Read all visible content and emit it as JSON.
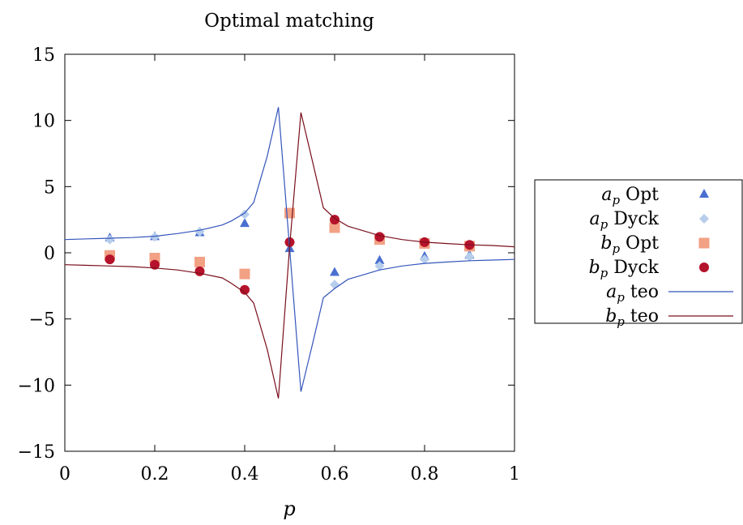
{
  "chart_data": {
    "type": "scatter",
    "title": "Optimal matching",
    "xlabel": "p",
    "ylabel": "",
    "xlim": [
      0,
      1
    ],
    "ylim": [
      -15,
      15
    ],
    "xticks": [
      0,
      0.2,
      0.4,
      0.6,
      0.8,
      1
    ],
    "xtick_labels": [
      "0",
      "0.2",
      "0.4",
      "0.6",
      "0.8",
      "1"
    ],
    "yticks": [
      -15,
      -10,
      -5,
      0,
      5,
      10,
      15
    ],
    "ytick_labels": [
      "−15",
      "−10",
      "−5",
      "0",
      "5",
      "10",
      "15"
    ],
    "grid": false,
    "legend_position": "right, outside plot",
    "series": [
      {
        "name": "a_p Opt",
        "label": "Opt",
        "sym": "a",
        "marker": "triangle",
        "color": "#4a6fd1",
        "x": [
          0.1,
          0.2,
          0.3,
          0.4,
          0.5,
          0.6,
          0.7,
          0.8,
          0.9
        ],
        "y": [
          1.1,
          1.2,
          1.5,
          2.2,
          0.3,
          -1.5,
          -0.6,
          -0.3,
          -0.2
        ]
      },
      {
        "name": "a_p Dyck",
        "label": "Dyck",
        "sym": "a",
        "marker": "diamond",
        "color": "#b7cdec",
        "x": [
          0.1,
          0.2,
          0.3,
          0.4,
          0.6,
          0.7,
          0.8,
          0.9
        ],
        "y": [
          1.0,
          1.2,
          1.6,
          2.9,
          -2.4,
          -1.0,
          -0.5,
          -0.3
        ]
      },
      {
        "name": "b_p Opt",
        "label": "Opt",
        "sym": "b",
        "marker": "square",
        "color": "#f2a184",
        "x": [
          0.1,
          0.2,
          0.3,
          0.4,
          0.5,
          0.6,
          0.7,
          0.8,
          0.9
        ],
        "y": [
          -0.2,
          -0.4,
          -0.7,
          -1.6,
          3.0,
          1.9,
          1.0,
          0.7,
          0.5
        ]
      },
      {
        "name": "b_p Dyck",
        "label": "Dyck",
        "sym": "b",
        "marker": "circle",
        "color": "#b5122b",
        "x": [
          0.1,
          0.2,
          0.3,
          0.4,
          0.5,
          0.6,
          0.7,
          0.8,
          0.9
        ],
        "y": [
          -0.5,
          -0.9,
          -1.4,
          -2.8,
          0.8,
          2.5,
          1.2,
          0.8,
          0.6
        ]
      },
      {
        "name": "a_p teo",
        "label": "teo",
        "sym": "a",
        "marker": "line",
        "color": "#3355bb",
        "x": [
          0.0,
          0.05,
          0.1,
          0.15,
          0.2,
          0.25,
          0.3,
          0.35,
          0.37,
          0.4,
          0.42,
          0.45,
          0.475,
          0.5,
          0.525,
          0.55,
          0.575,
          0.6,
          0.63,
          0.65,
          0.7,
          0.75,
          0.8,
          0.85,
          0.9,
          0.95,
          1.0
        ],
        "y": [
          1.0,
          1.05,
          1.1,
          1.15,
          1.25,
          1.45,
          1.7,
          2.1,
          2.4,
          3.0,
          3.8,
          7.3,
          11.0,
          0.3,
          -10.5,
          -7.0,
          -3.4,
          -2.7,
          -2.0,
          -1.8,
          -1.3,
          -1.0,
          -0.8,
          -0.7,
          -0.6,
          -0.55,
          -0.5
        ]
      },
      {
        "name": "b_p teo",
        "label": "teo",
        "sym": "b",
        "marker": "line",
        "color": "#7a0f1c",
        "x": [
          0.0,
          0.05,
          0.1,
          0.15,
          0.2,
          0.25,
          0.3,
          0.35,
          0.37,
          0.4,
          0.42,
          0.45,
          0.475,
          0.5,
          0.525,
          0.55,
          0.575,
          0.6,
          0.63,
          0.65,
          0.7,
          0.75,
          0.8,
          0.85,
          0.9,
          0.95,
          1.0
        ],
        "y": [
          -0.9,
          -0.95,
          -1.0,
          -1.05,
          -1.15,
          -1.3,
          -1.55,
          -1.9,
          -2.3,
          -3.0,
          -3.8,
          -7.3,
          -11.0,
          0.5,
          10.6,
          7.0,
          3.4,
          2.6,
          2.0,
          1.8,
          1.3,
          1.0,
          0.8,
          0.7,
          0.6,
          0.55,
          0.45
        ]
      }
    ]
  }
}
